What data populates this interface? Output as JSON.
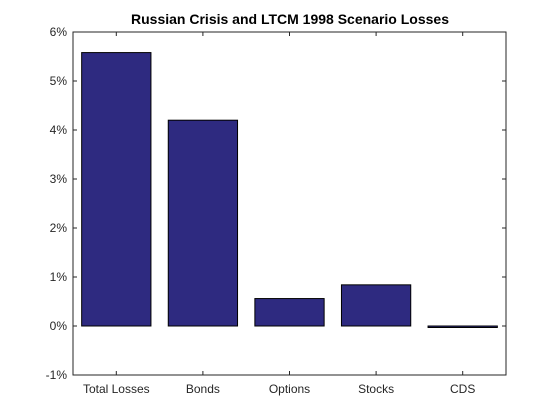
{
  "chart_data": {
    "type": "bar",
    "title": "Russian Crisis and LTCM 1998 Scenario Losses",
    "xlabel": "",
    "ylabel": "",
    "categories": [
      "Total Losses",
      "Bonds",
      "Options",
      "Stocks",
      "CDS"
    ],
    "values": [
      5.58,
      4.2,
      0.56,
      0.84,
      -0.03
    ],
    "value_unit": "%",
    "ylim": [
      -1,
      6
    ],
    "yticks": [
      -1,
      0,
      1,
      2,
      3,
      4,
      5,
      6
    ],
    "ytick_labels": [
      "-1%",
      "0%",
      "1%",
      "2%",
      "3%",
      "4%",
      "5%",
      "6%"
    ],
    "grid": false,
    "legend": "none",
    "bar_color": "#2e2a80",
    "bar_edge_color": "#000000"
  }
}
